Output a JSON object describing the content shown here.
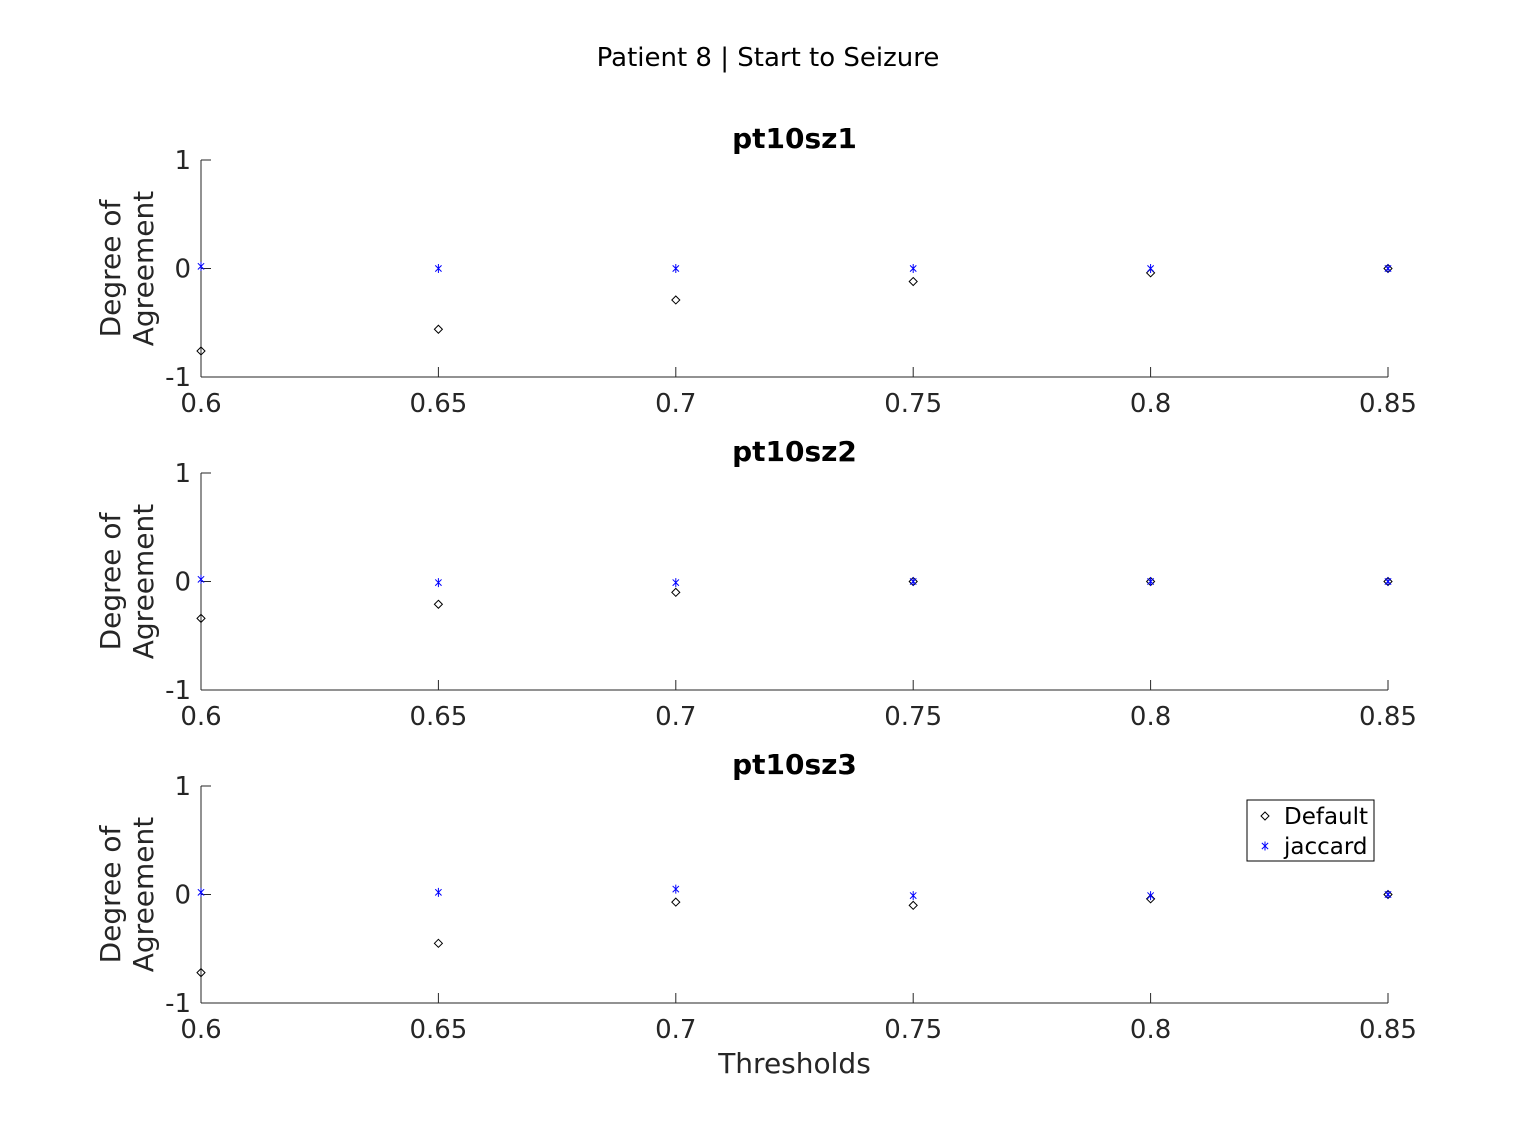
{
  "figure": {
    "title": "Patient 8 | Start to Seizure"
  },
  "colors": {
    "default_marker": "#000000",
    "jaccard_marker": "#0000ff",
    "axis": "#262626"
  },
  "chart_data": [
    {
      "type": "scatter",
      "title": "pt10sz1",
      "xlabel": "",
      "ylabel": "Degree of Agreement",
      "xlim": [
        0.6,
        0.85
      ],
      "ylim": [
        -1,
        1
      ],
      "xticks": [
        "0.6",
        "0.65",
        "0.7",
        "0.75",
        "0.8",
        "0.85"
      ],
      "yticks": [
        "1",
        "0",
        "-1"
      ],
      "grid": false,
      "legend": null,
      "x": [
        0.6,
        0.65,
        0.7,
        0.75,
        0.8,
        0.85
      ],
      "series": [
        {
          "name": "Default",
          "marker": "diamond",
          "values": [
            -0.76,
            -0.56,
            -0.29,
            -0.12,
            -0.04,
            0.0
          ]
        },
        {
          "name": "jaccard",
          "marker": "asterisk",
          "values": [
            0.02,
            0.0,
            0.0,
            0.0,
            0.0,
            0.0
          ]
        }
      ]
    },
    {
      "type": "scatter",
      "title": "pt10sz2",
      "xlabel": "",
      "ylabel": "Degree of Agreement",
      "xlim": [
        0.6,
        0.85
      ],
      "ylim": [
        -1,
        1
      ],
      "xticks": [
        "0.6",
        "0.65",
        "0.7",
        "0.75",
        "0.8",
        "0.85"
      ],
      "yticks": [
        "1",
        "0",
        "-1"
      ],
      "grid": false,
      "legend": null,
      "x": [
        0.6,
        0.65,
        0.7,
        0.75,
        0.8,
        0.85
      ],
      "series": [
        {
          "name": "Default",
          "marker": "diamond",
          "values": [
            -0.34,
            -0.21,
            -0.1,
            0.0,
            0.0,
            0.0
          ]
        },
        {
          "name": "jaccard",
          "marker": "asterisk",
          "values": [
            0.02,
            -0.01,
            -0.01,
            0.0,
            0.0,
            0.0
          ]
        }
      ]
    },
    {
      "type": "scatter",
      "title": "pt10sz3",
      "xlabel": "Thresholds",
      "ylabel": "Degree of Agreement",
      "xlim": [
        0.6,
        0.85
      ],
      "ylim": [
        -1,
        1
      ],
      "xticks": [
        "0.6",
        "0.65",
        "0.7",
        "0.75",
        "0.8",
        "0.85"
      ],
      "yticks": [
        "1",
        "0",
        "-1"
      ],
      "grid": false,
      "legend": "top-right",
      "x": [
        0.6,
        0.65,
        0.7,
        0.75,
        0.8,
        0.85
      ],
      "series": [
        {
          "name": "Default",
          "marker": "diamond",
          "values": [
            -0.72,
            -0.45,
            -0.07,
            -0.1,
            -0.04,
            0.0
          ]
        },
        {
          "name": "jaccard",
          "marker": "asterisk",
          "values": [
            0.02,
            0.02,
            0.05,
            -0.01,
            -0.01,
            0.0
          ]
        }
      ]
    }
  ]
}
